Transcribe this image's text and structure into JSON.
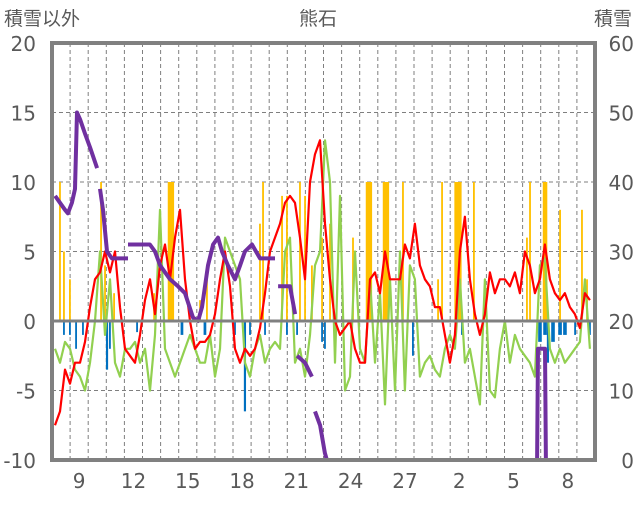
{
  "chart_data": {
    "type": "line",
    "title": "熊石",
    "ylabel_left": "積雪以外",
    "ylabel_right": "積雪",
    "ylim_left": [
      -10,
      20
    ],
    "ylim_right": [
      0,
      60
    ],
    "yticks_left": [
      "20",
      "15",
      "10",
      "5",
      "0",
      "-5",
      "-10"
    ],
    "yticks_right": [
      "60",
      "50",
      "40",
      "30",
      "20",
      "10",
      "0"
    ],
    "x_unit": "days since first day start",
    "xlim": [
      0,
      30
    ],
    "xticks": [
      {
        "day": 1.5,
        "label": "9"
      },
      {
        "day": 4.5,
        "label": "12"
      },
      {
        "day": 7.5,
        "label": "15"
      },
      {
        "day": 10.5,
        "label": "18"
      },
      {
        "day": 13.5,
        "label": "21"
      },
      {
        "day": 16.5,
        "label": "24"
      },
      {
        "day": 19.5,
        "label": "27"
      },
      {
        "day": 22.5,
        "label": "2"
      },
      {
        "day": 25.5,
        "label": "5"
      },
      {
        "day": 28.5,
        "label": "8"
      }
    ],
    "grid": true,
    "colors": {
      "red": "#ff0000",
      "green": "#92d050",
      "yellow": "#ffc000",
      "blue": "#0070c0",
      "purple": "#7030a0",
      "axis": "#808080"
    },
    "series_red": {
      "axis": "left",
      "x_start": 0.166,
      "x_step": 0.2762,
      "values": [
        -7.5,
        -6.5,
        -3.5,
        -4.5,
        -3,
        -3,
        -1.5,
        1,
        3,
        3.5,
        5,
        3.5,
        5,
        1,
        -2,
        -2.5,
        -3,
        -1,
        1.5,
        3,
        0.5,
        4,
        5.5,
        3,
        6,
        8,
        3,
        0,
        -2,
        -1.5,
        -1.5,
        -1,
        0.5,
        3,
        5,
        2.5,
        -2,
        -3,
        -2,
        -2.5,
        -2,
        -0.5,
        2,
        5,
        6,
        7,
        8.5,
        9,
        8.5,
        6,
        3,
        10,
        12,
        13,
        7,
        3,
        0,
        -1,
        -0.5,
        0,
        -2,
        -3,
        -3,
        3,
        3.5,
        2,
        5,
        3,
        3,
        3,
        5.5,
        4.5,
        7,
        4,
        3,
        2.5,
        1,
        1,
        -1,
        -3,
        -1,
        5,
        7.5,
        3,
        0.5,
        -1,
        0.5,
        3.5,
        2,
        3,
        3,
        2.5,
        3.5,
        2,
        5,
        4,
        2,
        3,
        5.5,
        3,
        2,
        1.5,
        2,
        1,
        0.5,
        -0.5,
        2,
        1.5
      ]
    },
    "series_green": {
      "axis": "left",
      "x_start": 0.166,
      "x_step": 0.2762,
      "values": [
        -2,
        -3,
        -1.5,
        -2,
        -3.5,
        -4,
        -5,
        -3,
        0,
        5,
        -1,
        3,
        -3,
        -4,
        -2,
        -2,
        -1.5,
        -3,
        -2,
        -5,
        -1,
        8,
        -2,
        -3,
        -4,
        -3,
        -2,
        -1,
        -2,
        -3,
        -3,
        -1,
        -4,
        -2,
        6,
        5,
        4,
        3,
        -3,
        -4,
        -2,
        -1,
        -3,
        -2,
        -1.5,
        -2,
        5,
        6,
        -3,
        -2,
        -4,
        -1,
        4,
        5,
        13,
        10,
        -3,
        9,
        -5,
        -4,
        5,
        -2,
        -3,
        3,
        -3,
        2,
        -6,
        3,
        -5,
        5,
        -5,
        4,
        3,
        -4,
        -3,
        -2.5,
        -3.5,
        -4,
        -2,
        -1,
        -2,
        3,
        -3,
        -2,
        -4,
        -6,
        3,
        -5,
        -5.5,
        -2,
        0,
        -3,
        -1,
        -2,
        -2.5,
        -3,
        -4,
        4,
        4.5,
        -2,
        -3,
        -2,
        -3,
        -2.5,
        -2,
        -1.5,
        3,
        -2
      ]
    },
    "bars_yellow": {
      "axis": "left",
      "points": [
        [
          0.44,
          10,
          0.1
        ],
        [
          0.66,
          5,
          0.1
        ],
        [
          0.99,
          3,
          0.1
        ],
        [
          2.71,
          10,
          0.1
        ],
        [
          2.93,
          4,
          0.1
        ],
        [
          3.43,
          2,
          0.1
        ],
        [
          5.64,
          2,
          0.1
        ],
        [
          6.57,
          10,
          0.35
        ],
        [
          8.18,
          1.5,
          0.1
        ],
        [
          8.56,
          3,
          0.1
        ],
        [
          11.49,
          7,
          0.1
        ],
        [
          11.66,
          10,
          0.1
        ],
        [
          12.71,
          9,
          0.1
        ],
        [
          12.98,
          9,
          0.1
        ],
        [
          13.7,
          10,
          0.1
        ],
        [
          13.98,
          9,
          0.1
        ],
        [
          14.36,
          4,
          0.1
        ],
        [
          14.92,
          6,
          0.1
        ],
        [
          15.36,
          7,
          0.1
        ],
        [
          16.63,
          6,
          0.1
        ],
        [
          17.51,
          10,
          0.35
        ],
        [
          18.45,
          10,
          0.35
        ],
        [
          19.39,
          10,
          0.1
        ],
        [
          21.33,
          3,
          0.1
        ],
        [
          21.55,
          10,
          0.1
        ],
        [
          22.43,
          10,
          0.4
        ],
        [
          23.31,
          10,
          0.1
        ],
        [
          26.24,
          6,
          0.1
        ],
        [
          26.41,
          10,
          0.1
        ],
        [
          27.24,
          10,
          0.25
        ],
        [
          28.07,
          8,
          0.1
        ],
        [
          29.28,
          8,
          0.1
        ],
        [
          29.56,
          3,
          0.1
        ]
      ]
    },
    "bars_blue": {
      "axis": "left",
      "points": [
        [
          0.66,
          -1,
          0.1
        ],
        [
          0.99,
          -1,
          0.1
        ],
        [
          1.33,
          -2,
          0.1
        ],
        [
          1.71,
          -1,
          0.1
        ],
        [
          3.04,
          -3.5,
          0.12
        ],
        [
          3.2,
          -2,
          0.1
        ],
        [
          4.7,
          -0.8,
          0.1
        ],
        [
          7.18,
          -1,
          0.15
        ],
        [
          8.45,
          -1,
          0.15
        ],
        [
          10.11,
          -1,
          0.1
        ],
        [
          10.66,
          -6.5,
          0.12
        ],
        [
          10.94,
          -1,
          0.1
        ],
        [
          11.77,
          -1,
          0.1
        ],
        [
          12.98,
          -1,
          0.1
        ],
        [
          13.54,
          -1,
          0.1
        ],
        [
          14.92,
          -1.5,
          0.1
        ],
        [
          15.08,
          -2,
          0.1
        ],
        [
          19.94,
          -2.5,
          0.1
        ],
        [
          22.65,
          -1,
          0.1
        ],
        [
          26.96,
          -1.5,
          0.2
        ],
        [
          27.24,
          -1,
          0.2
        ],
        [
          27.4,
          -3,
          0.12
        ],
        [
          27.68,
          -1.5,
          0.2
        ],
        [
          28.07,
          -1,
          0.2
        ],
        [
          28.34,
          -1,
          0.2
        ],
        [
          28.9,
          -1,
          0.1
        ],
        [
          29.72,
          -1,
          0.1
        ]
      ]
    },
    "series_purple": {
      "axis": "right",
      "points": [
        [
          0.17,
          38
        ],
        [
          0.44,
          37
        ],
        [
          0.72,
          36
        ],
        [
          0.88,
          35.5
        ],
        [
          1.1,
          37
        ],
        [
          1.27,
          39
        ],
        [
          1.38,
          50
        ],
        [
          1.55,
          49
        ],
        [
          1.82,
          47
        ],
        [
          2.1,
          45
        ],
        [
          2.49,
          42
        ],
        null,
        [
          2.65,
          39
        ],
        [
          2.82,
          36
        ],
        [
          3.04,
          30
        ],
        [
          3.31,
          29
        ],
        [
          4.2,
          29
        ],
        null,
        [
          4.2,
          31
        ],
        [
          5.41,
          31
        ],
        [
          5.69,
          30
        ],
        [
          5.97,
          28
        ],
        [
          6.52,
          26
        ],
        [
          6.96,
          25
        ],
        [
          7.35,
          24
        ],
        [
          7.79,
          20.5
        ],
        [
          8.07,
          20
        ],
        [
          8.29,
          22
        ],
        [
          8.62,
          28
        ],
        [
          8.9,
          31
        ],
        [
          9.17,
          32
        ],
        [
          9.39,
          30
        ],
        [
          9.72,
          28
        ],
        [
          10.11,
          26
        ],
        [
          10.39,
          28
        ],
        [
          10.66,
          30
        ],
        [
          11.05,
          31
        ],
        [
          11.27,
          30
        ],
        [
          11.49,
          29
        ],
        [
          12.32,
          29
        ],
        null,
        [
          12.49,
          25
        ],
        [
          13.15,
          25
        ],
        [
          13.43,
          21
        ],
        null,
        [
          13.54,
          15
        ],
        [
          13.98,
          14
        ],
        [
          14.36,
          12
        ],
        null,
        [
          14.53,
          7
        ],
        [
          14.81,
          5
        ],
        [
          15.08,
          1
        ],
        [
          15.19,
          0
        ],
        [
          26.8,
          0
        ],
        [
          26.85,
          16
        ],
        [
          27.24,
          16
        ],
        [
          27.29,
          0
        ],
        null,
        [
          29.17,
          0
        ],
        [
          29.83,
          0
        ]
      ]
    }
  }
}
